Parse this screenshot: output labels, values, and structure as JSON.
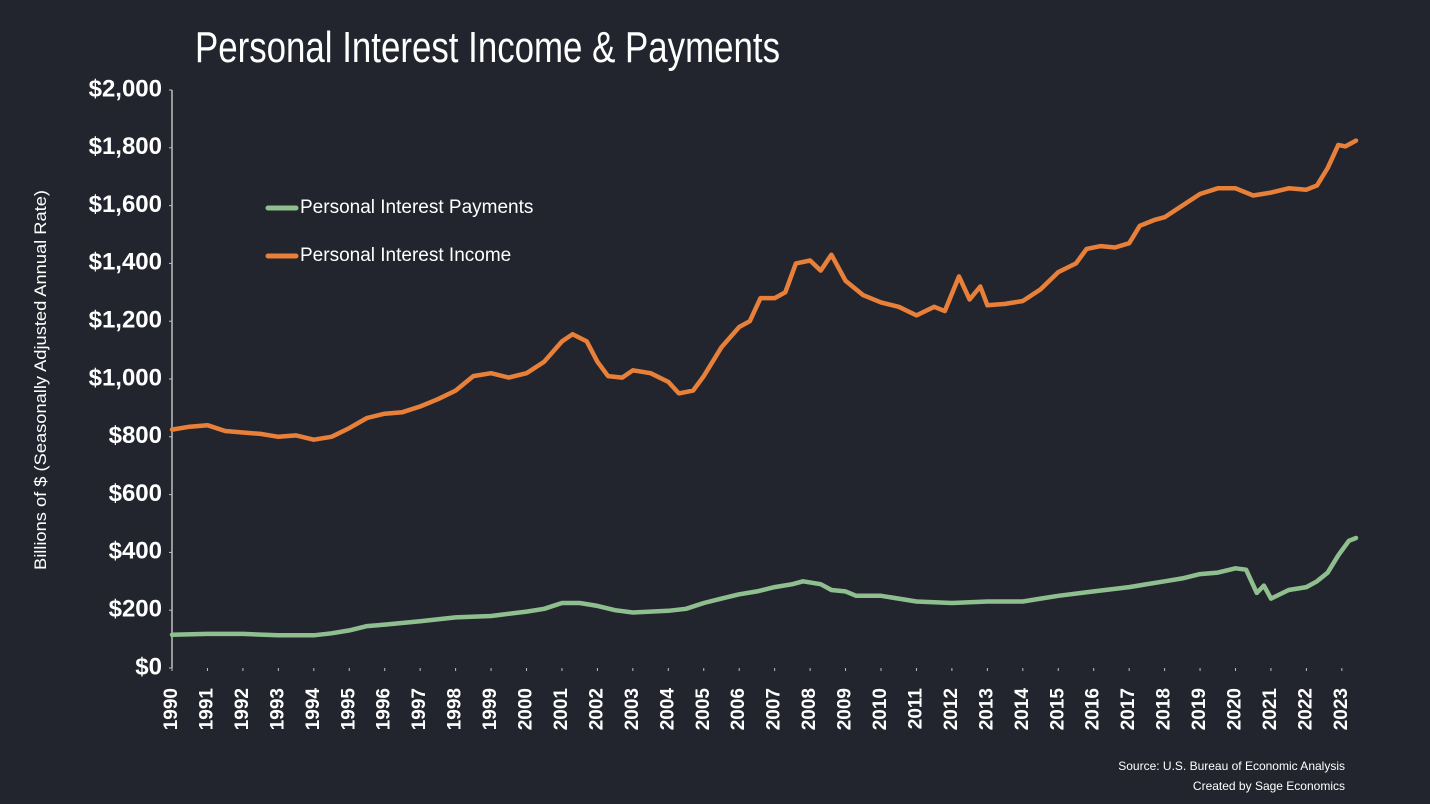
{
  "chart_data": {
    "type": "line",
    "title": "Personal Interest Income & Payments",
    "y_label": "Billions of $ (Seasonally Adjusted Annual Rate)",
    "source": "Source: U.S. Bureau of Economic Analysis",
    "credit": "Created by Sage Economics",
    "legend": "upper left",
    "xlim": [
      1990,
      2023.5
    ],
    "xticks": [
      1990,
      1991,
      1992,
      1993,
      1994,
      1995,
      1996,
      1997,
      1998,
      1999,
      2000,
      2001,
      2002,
      2003,
      2004,
      2005,
      2006,
      2007,
      2008,
      2009,
      2010,
      2011,
      2012,
      2013,
      2014,
      2015,
      2016,
      2017,
      2018,
      2019,
      2020,
      2021,
      2022,
      2023
    ],
    "ylim": [
      0,
      2000
    ],
    "yticks": [
      {
        "value": 0,
        "label": "$0"
      },
      {
        "value": 200,
        "label": "$200"
      },
      {
        "value": 400,
        "label": "$400"
      },
      {
        "value": 600,
        "label": "$600"
      },
      {
        "value": 800,
        "label": "$800"
      },
      {
        "value": 1000,
        "label": "$1,000"
      },
      {
        "value": 1200,
        "label": "$1,200"
      },
      {
        "value": 1400,
        "label": "$1,400"
      },
      {
        "value": 1600,
        "label": "$1,600"
      },
      {
        "value": 1800,
        "label": "$1,800"
      },
      {
        "value": 2000,
        "label": "$2,000"
      }
    ],
    "grid": false,
    "series": [
      {
        "name": "Personal Interest Payments",
        "color": "#8fbf8f",
        "x": [
          1990,
          1991,
          1992,
          1993,
          1994,
          1994.5,
          1995,
          1995.5,
          1996,
          1997,
          1998,
          1999,
          2000,
          2000.5,
          2001,
          2001.5,
          2002,
          2002.5,
          2003,
          2004,
          2004.5,
          2005,
          2005.5,
          2006,
          2006.5,
          2007,
          2007.5,
          2007.8,
          2008.3,
          2008.6,
          2009,
          2009.3,
          2010,
          2011,
          2012,
          2013,
          2014,
          2014.5,
          2015,
          2016,
          2017,
          2018,
          2018.5,
          2019,
          2019.5,
          2020,
          2020.3,
          2020.6,
          2020.8,
          2021,
          2021.5,
          2022,
          2022.3,
          2022.6,
          2022.9,
          2023.2,
          2023.4
        ],
        "values": [
          115,
          118,
          118,
          113,
          113,
          120,
          130,
          145,
          150,
          162,
          175,
          180,
          195,
          205,
          225,
          225,
          215,
          200,
          192,
          198,
          205,
          225,
          240,
          255,
          265,
          280,
          290,
          300,
          290,
          270,
          265,
          250,
          250,
          230,
          225,
          230,
          230,
          240,
          250,
          265,
          280,
          300,
          310,
          325,
          330,
          345,
          340,
          260,
          285,
          240,
          270,
          280,
          300,
          330,
          390,
          440,
          450
        ]
      },
      {
        "name": "Personal Interest Income",
        "color": "#e8803a",
        "x": [
          1990,
          1990.5,
          1991,
          1991.5,
          1992,
          1992.5,
          1993,
          1993.5,
          1994,
          1994.5,
          1995,
          1995.5,
          1996,
          1996.5,
          1997,
          1997.5,
          1998,
          1998.5,
          1999,
          1999.5,
          2000,
          2000.5,
          2001,
          2001.3,
          2001.7,
          2002,
          2002.3,
          2002.7,
          2003,
          2003.5,
          2004,
          2004.3,
          2004.7,
          2005,
          2005.5,
          2006,
          2006.3,
          2006.6,
          2007,
          2007.3,
          2007.6,
          2008,
          2008.3,
          2008.6,
          2009,
          2009.5,
          2010,
          2010.5,
          2011,
          2011.5,
          2011.8,
          2012.2,
          2012.5,
          2012.8,
          2013,
          2013.5,
          2014,
          2014.5,
          2015,
          2015.5,
          2015.8,
          2016.2,
          2016.6,
          2017,
          2017.3,
          2017.7,
          2018,
          2018.5,
          2019,
          2019.5,
          2020,
          2020.5,
          2021,
          2021.5,
          2022,
          2022.3,
          2022.6,
          2022.9,
          2023.1,
          2023.4
        ],
        "values": [
          825,
          835,
          840,
          820,
          815,
          810,
          800,
          805,
          790,
          800,
          830,
          865,
          880,
          885,
          905,
          930,
          960,
          1010,
          1020,
          1005,
          1020,
          1060,
          1130,
          1155,
          1130,
          1060,
          1010,
          1005,
          1030,
          1020,
          990,
          950,
          960,
          1010,
          1110,
          1180,
          1200,
          1280,
          1280,
          1300,
          1400,
          1410,
          1375,
          1430,
          1340,
          1290,
          1265,
          1250,
          1220,
          1250,
          1235,
          1355,
          1275,
          1320,
          1255,
          1260,
          1270,
          1310,
          1370,
          1400,
          1450,
          1460,
          1455,
          1470,
          1530,
          1550,
          1560,
          1600,
          1640,
          1660,
          1660,
          1635,
          1645,
          1660,
          1655,
          1670,
          1730,
          1810,
          1805,
          1825
        ]
      }
    ]
  }
}
